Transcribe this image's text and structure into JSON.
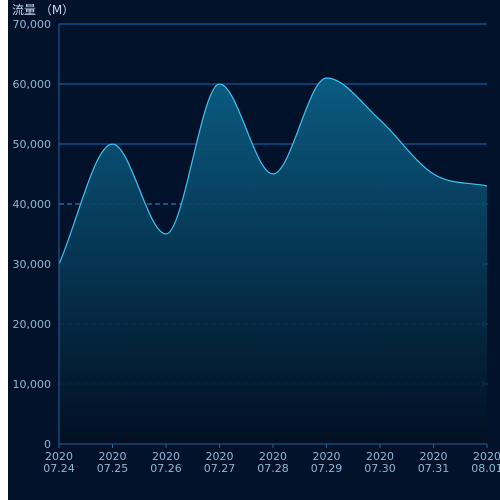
{
  "chart_data": {
    "type": "area",
    "title": "",
    "ylabel": "流量 （M）",
    "xlabel": "",
    "x_categories": [
      [
        "2020",
        "07.24"
      ],
      [
        "2020",
        "07.25"
      ],
      [
        "2020",
        "07.26"
      ],
      [
        "2020",
        "07.27"
      ],
      [
        "2020",
        "07.28"
      ],
      [
        "2020",
        "07.29"
      ],
      [
        "2020",
        "07.30"
      ],
      [
        "2020",
        "07.31"
      ],
      [
        "2020",
        "08.01"
      ]
    ],
    "series": [
      {
        "values": [
          30000,
          50000,
          35000,
          60000,
          45000,
          61000,
          54000,
          45000,
          43000
        ]
      }
    ],
    "ylim": [
      0,
      70000
    ],
    "y_ticks": [
      0,
      10000,
      20000,
      30000,
      40000,
      50000,
      60000,
      70000
    ],
    "y_tick_labels": [
      "0",
      "10,000",
      "20,000",
      "30,000",
      "40,000",
      "50,000",
      "60,000",
      "70,000"
    ],
    "grid": true,
    "legend": "none"
  },
  "colors": {
    "background": "#01122a",
    "line": "#3ec3f0",
    "area_top": "#0b5f86",
    "area_bottom": "#020f22",
    "grid_solid": "#1a68b8",
    "grid_dashed": "#2f8fe0",
    "axis": "#2a5f95",
    "tick_text": "#8fb6d4",
    "title_text": "#c8d6e8"
  }
}
